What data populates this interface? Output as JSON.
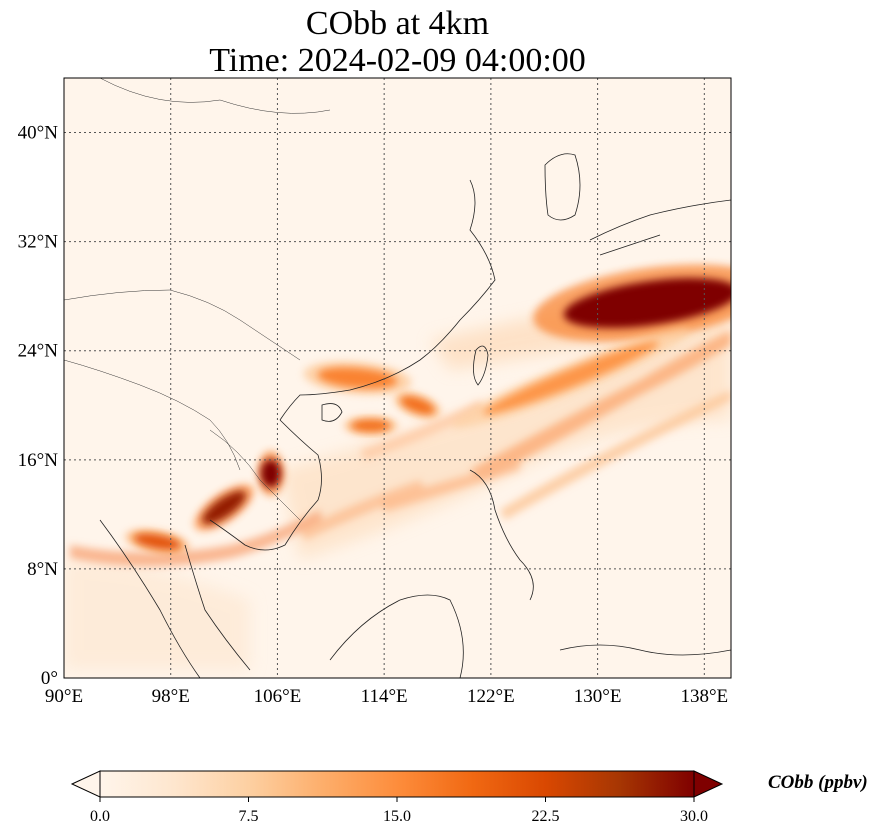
{
  "title": {
    "line1": "CObb at 4km",
    "line2": "Time: 2024-02-09 04:00:00"
  },
  "map": {
    "lon_range": [
      90,
      140
    ],
    "lat_range": [
      0,
      44
    ],
    "xticks": [
      {
        "value": 90,
        "label": "90°E"
      },
      {
        "value": 98,
        "label": "98°E"
      },
      {
        "value": 106,
        "label": "106°E"
      },
      {
        "value": 114,
        "label": "114°E"
      },
      {
        "value": 122,
        "label": "122°E"
      },
      {
        "value": 130,
        "label": "130°E"
      },
      {
        "value": 138,
        "label": "138°E"
      }
    ],
    "yticks": [
      {
        "value": 0,
        "label": "0°"
      },
      {
        "value": 8,
        "label": "8°N"
      },
      {
        "value": 16,
        "label": "16°N"
      },
      {
        "value": 24,
        "label": "24°N"
      },
      {
        "value": 32,
        "label": "32°N"
      },
      {
        "value": 40,
        "label": "40°N"
      }
    ],
    "gridlines": true,
    "background_color": "#fff5eb",
    "colormap": "OrRd",
    "plumes": [
      {
        "name": "east-china-sea-plume-core",
        "lon": 134,
        "lat": 27.5,
        "value": 30
      },
      {
        "name": "east-china-sea-plume-band",
        "lon": 128,
        "lat": 22,
        "value": 14
      },
      {
        "name": "indochina-plume-core",
        "lon": 105.5,
        "lat": 15,
        "value": 30
      },
      {
        "name": "cambodia-plume",
        "lon": 102,
        "lat": 12.5,
        "value": 28
      },
      {
        "name": "gulf-of-thailand-plume",
        "lon": 97,
        "lat": 10,
        "value": 21
      },
      {
        "name": "south-china-plume",
        "lon": 112,
        "lat": 22,
        "value": 16
      },
      {
        "name": "taiwan-strait-plume",
        "lon": 116.5,
        "lat": 20,
        "value": 18
      },
      {
        "name": "hainan-east-plume",
        "lon": 113,
        "lat": 18.5,
        "value": 18
      }
    ]
  },
  "colorbar": {
    "label": "CObb (ppbv)",
    "min": 0.0,
    "max": 30.0,
    "extend": "both",
    "colors": [
      "#fff5eb",
      "#fee6ce",
      "#fdd0a2",
      "#fdae6b",
      "#fd8d3c",
      "#f16913",
      "#d94801",
      "#a63603",
      "#7f0000"
    ],
    "ticks": [
      {
        "value": 0.0,
        "label": "0.0"
      },
      {
        "value": 7.5,
        "label": "7.5"
      },
      {
        "value": 15.0,
        "label": "15.0"
      },
      {
        "value": 22.5,
        "label": "22.5"
      },
      {
        "value": 30.0,
        "label": "30.0"
      }
    ]
  }
}
